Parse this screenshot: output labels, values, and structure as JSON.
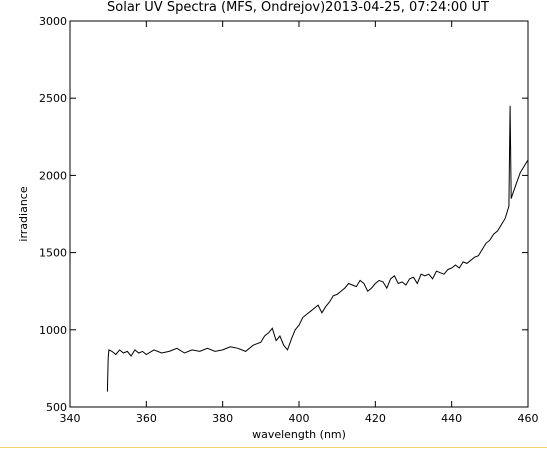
{
  "chart_data": {
    "type": "line",
    "title": "Solar UV Spectra (MFS, Ondrejov)2013-04-25, 07:24:00 UT",
    "xlabel": "wavelength (nm)",
    "ylabel": "irradiance",
    "xlim": [
      340,
      460
    ],
    "ylim": [
      500,
      3000
    ],
    "x_ticks": [
      340,
      360,
      380,
      400,
      420,
      440,
      460
    ],
    "y_ticks": [
      500,
      1000,
      1500,
      2000,
      2500,
      3000
    ],
    "grid": false,
    "line_color": "#000000",
    "series": [
      {
        "x": [
          349.8,
          350.0,
          350.2,
          351,
          352,
          353,
          354,
          355,
          356,
          357,
          358,
          359,
          360,
          362,
          364,
          366,
          368,
          370,
          372,
          374,
          376,
          378,
          380,
          382,
          384,
          386,
          388,
          390,
          391,
          392,
          393,
          394,
          395,
          396,
          397,
          398,
          399,
          400,
          401,
          402,
          403,
          404,
          405,
          406,
          407,
          408,
          409,
          410,
          411,
          412,
          413,
          414,
          415,
          416,
          417,
          418,
          419,
          420,
          421,
          422,
          423,
          424,
          425,
          426,
          427,
          428,
          429,
          430,
          431,
          432,
          433,
          434,
          435,
          436,
          437,
          438,
          439,
          440,
          441,
          442,
          443,
          444,
          445,
          446,
          447,
          448,
          449,
          450,
          451,
          452,
          453,
          454,
          455,
          455.3,
          455.6,
          456,
          457,
          458,
          459,
          460
        ],
        "y": [
          600,
          820,
          870,
          860,
          840,
          870,
          850,
          860,
          830,
          870,
          850,
          860,
          840,
          870,
          850,
          860,
          880,
          850,
          870,
          860,
          880,
          860,
          870,
          890,
          880,
          860,
          900,
          920,
          960,
          980,
          1010,
          930,
          960,
          900,
          870,
          940,
          1000,
          1030,
          1080,
          1100,
          1120,
          1140,
          1160,
          1110,
          1150,
          1180,
          1220,
          1230,
          1250,
          1270,
          1300,
          1290,
          1280,
          1320,
          1300,
          1250,
          1270,
          1300,
          1320,
          1310,
          1270,
          1330,
          1350,
          1300,
          1310,
          1290,
          1330,
          1340,
          1300,
          1360,
          1350,
          1360,
          1330,
          1380,
          1370,
          1360,
          1390,
          1400,
          1420,
          1400,
          1440,
          1430,
          1450,
          1470,
          1480,
          1520,
          1560,
          1580,
          1620,
          1640,
          1680,
          1720,
          1800,
          2450,
          1850,
          1880,
          1950,
          2020,
          2060,
          2100
        ]
      }
    ]
  }
}
